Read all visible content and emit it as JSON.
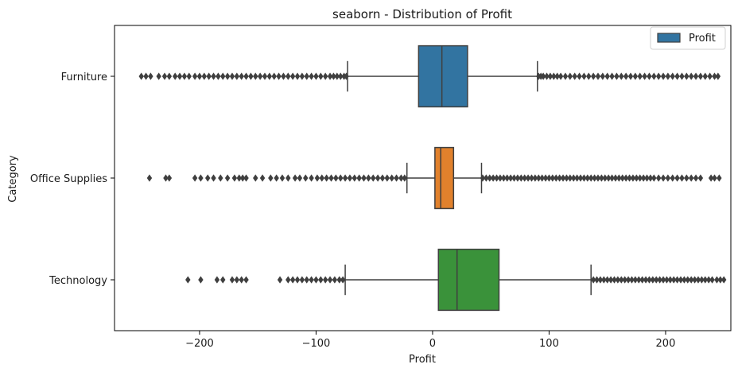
{
  "chart_data": {
    "type": "boxplot",
    "orientation": "horizontal",
    "title": "seaborn - Distribution of Profit",
    "xlabel": "Profit",
    "ylabel": "Category",
    "xlim": [
      -273,
      256
    ],
    "xticks": [
      -200,
      -100,
      0,
      100,
      200
    ],
    "xtick_labels": [
      "−200",
      "−100",
      "0",
      "100",
      "200"
    ],
    "grid": false,
    "legend": {
      "placement": "top-right",
      "entries": [
        {
          "label": "Profit",
          "color": "#3274a1"
        }
      ]
    },
    "categories": [
      "Furniture",
      "Office Supplies",
      "Technology"
    ],
    "boxes": [
      {
        "category": "Furniture",
        "color": "#3274a1",
        "whisker_low": -73,
        "q1": -12,
        "median": 8,
        "q3": 30,
        "whisker_high": 90,
        "outliers_low_range": [
          -250,
          -74
        ],
        "outliers_high_range": [
          91,
          245
        ],
        "outliers": [
          -250,
          -246,
          -242,
          -235,
          -230,
          -226,
          -221,
          -217,
          -213,
          -209,
          -204,
          -200,
          -196,
          -192,
          -188,
          -184,
          -180,
          -176,
          -172,
          -168,
          -164,
          -160,
          -156,
          -152,
          -148,
          -144,
          -140,
          -136,
          -132,
          -128,
          -124,
          -120,
          -116,
          -112,
          -108,
          -104,
          -100,
          -96,
          -92,
          -88,
          -85,
          -82,
          -79,
          -76,
          -74,
          91,
          93,
          95,
          98,
          101,
          104,
          107,
          110,
          114,
          118,
          122,
          126,
          130,
          134,
          138,
          142,
          146,
          150,
          154,
          158,
          162,
          166,
          170,
          174,
          178,
          182,
          186,
          190,
          194,
          198,
          202,
          206,
          210,
          214,
          218,
          222,
          226,
          230,
          234,
          238,
          242,
          245
        ]
      },
      {
        "category": "Office Supplies",
        "color": "#e1812c",
        "whisker_low": -22,
        "q1": 2,
        "median": 7,
        "q3": 18,
        "whisker_high": 42,
        "outliers_low_range": [
          -243,
          -23
        ],
        "outliers_high_range": [
          43,
          246
        ],
        "outliers": [
          -243,
          -229,
          -226,
          -204,
          -199,
          -193,
          -188,
          -182,
          -176,
          -170,
          -166,
          -163,
          -160,
          -152,
          -146,
          -139,
          -134,
          -129,
          -124,
          -118,
          -114,
          -109,
          -104,
          -99,
          -95,
          -91,
          -87,
          -83,
          -79,
          -75,
          -71,
          -67,
          -63,
          -59,
          -55,
          -51,
          -47,
          -43,
          -39,
          -35,
          -31,
          -27,
          -24,
          43,
          46,
          49,
          52,
          55,
          58,
          61,
          64,
          67,
          70,
          73,
          76,
          79,
          82,
          85,
          88,
          91,
          94,
          97,
          100,
          103,
          106,
          109,
          112,
          115,
          118,
          121,
          124,
          127,
          130,
          133,
          136,
          139,
          142,
          145,
          148,
          151,
          154,
          157,
          160,
          163,
          166,
          169,
          172,
          175,
          178,
          181,
          184,
          187,
          190,
          194,
          198,
          202,
          206,
          210,
          214,
          218,
          222,
          226,
          230,
          239,
          242,
          246
        ]
      },
      {
        "category": "Technology",
        "color": "#3a923a",
        "whisker_low": -75,
        "q1": 5,
        "median": 21,
        "q3": 57,
        "whisker_high": 136,
        "outliers_low_range": [
          -210,
          -76
        ],
        "outliers_high_range": [
          137,
          250
        ],
        "outliers": [
          -210,
          -199,
          -185,
          -180,
          -172,
          -168,
          -164,
          -160,
          -131,
          -124,
          -120,
          -116,
          -112,
          -108,
          -104,
          -100,
          -96,
          -92,
          -88,
          -84,
          -80,
          -77,
          138,
          141,
          144,
          147,
          150,
          153,
          156,
          159,
          162,
          165,
          168,
          171,
          174,
          177,
          180,
          183,
          186,
          189,
          192,
          195,
          198,
          201,
          204,
          207,
          210,
          213,
          216,
          219,
          222,
          225,
          228,
          231,
          234,
          237,
          240,
          244,
          247,
          250
        ]
      }
    ]
  }
}
